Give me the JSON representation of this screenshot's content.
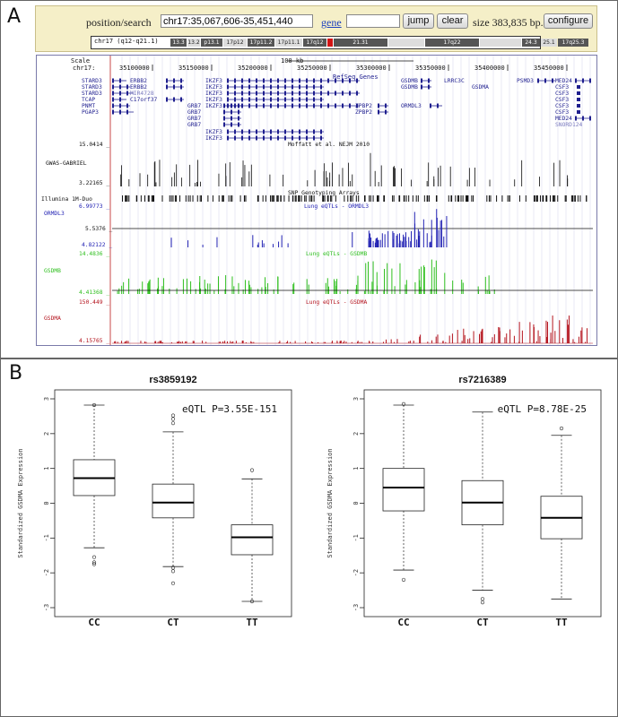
{
  "panel_a": {
    "letter": "A",
    "toolbar": {
      "position_label": "position/search",
      "position_value": "chr17:35,067,606-35,451,440",
      "gene_label": "gene",
      "gene_value": "",
      "jump_label": "jump",
      "clear_label": "clear",
      "size_text": "size 383,835 bp.",
      "configure_label": "configure"
    },
    "ideogram": {
      "label": "chr17 (q12-q21.1)",
      "bands": [
        {
          "name": "13.3",
          "w": 18,
          "dark": true
        },
        {
          "name": "13.2",
          "w": 14,
          "dark": false
        },
        {
          "name": "p13.1",
          "w": 24,
          "dark": true
        },
        {
          "name": "17p12",
          "w": 26,
          "dark": false
        },
        {
          "name": "17p11.2",
          "w": 30,
          "dark": true
        },
        {
          "name": "17p11.1",
          "w": 30,
          "dark": false
        },
        {
          "name": "17q12",
          "w": 26,
          "dark": true
        },
        {
          "name": "",
          "w": 6,
          "dark": false,
          "red": true
        },
        {
          "name": "21.31",
          "w": 60,
          "dark": true
        },
        {
          "name": "",
          "w": 40,
          "dark": false
        },
        {
          "name": "17q22",
          "w": 60,
          "dark": true
        },
        {
          "name": "",
          "w": 46,
          "dark": false
        },
        {
          "name": "24.3",
          "w": 20,
          "dark": true
        },
        {
          "name": "25.1",
          "w": 18,
          "dark": false
        },
        {
          "name": "17q25.3",
          "w": 34,
          "dark": true
        }
      ]
    },
    "tracks": {
      "scale_label": "Scale",
      "scale_text": "100 kb",
      "chrom_label": "chr17:",
      "positions": [
        "35100000",
        "35150000",
        "35200000",
        "35250000",
        "35300000",
        "35350000",
        "35400000",
        "35450000"
      ],
      "refseq_title": "RefSeq Genes",
      "genes_left": [
        "STARD3",
        "STARD3",
        "STARD3",
        "TCAP",
        "PNMT",
        "PGAP3"
      ],
      "genes": [
        {
          "name": "ERBB2",
          "col": 1,
          "row": 0
        },
        {
          "name": "ERBB2",
          "col": 1,
          "row": 1
        },
        {
          "name": "MIR4728",
          "col": 1,
          "row": 2
        },
        {
          "name": "C17orf37",
          "col": 1,
          "row": 3
        },
        {
          "name": "GRB7",
          "col": 2,
          "row": 4
        },
        {
          "name": "GRB7",
          "col": 2,
          "row": 5
        },
        {
          "name": "GRB7",
          "col": 2,
          "row": 6
        },
        {
          "name": "GRB7",
          "col": 2,
          "row": 7
        }
      ],
      "ikzf3": [
        "IKZF3",
        "IKZF3",
        "IKZF3",
        "IKZF3",
        "IKZF3"
      ],
      "ikzf3_lower": [
        "IKZF3",
        "IKZF3"
      ],
      "zfpb": [
        "ZPBP2",
        "ZPBP2"
      ],
      "right_genes": [
        "GSDMB",
        "GSDMB",
        "ORMDL3"
      ],
      "lrrc3c": "LRRC3C",
      "gsdma": "GSDMA",
      "psmd3": "PSMD3",
      "med24": [
        "MED24",
        "CSF3",
        "CSF3",
        "CSF3",
        "CSF3",
        "CSF3",
        "MED24",
        "SNORD124"
      ],
      "gwas_top": "15.0414 _",
      "gwas_title": "Moffatt et al. NEJM 2010",
      "gwas_label": "GWAS-GABRIEL",
      "gwas_bottom": "3.22165 _",
      "snp_title": "SNP Genotyping Arrays",
      "snp_label": "Illumina 1M-Duo",
      "ormdl3_top": "6.99773 _",
      "ormdl3_title": "Lung eQTLs - ORMDL3",
      "ormdl3_label": "ORMDL3",
      "ormdl3_mid": "5.5376 _",
      "ormdl3_bottom": "4.82122 _",
      "gsdmb_top": "14.4836 _",
      "gsdmb_title": "Lung eQTLs - GSDMB",
      "gsdmb_label": "GSDMB",
      "gsdmb_bottom": "4.41368 _",
      "gsdma_top": "150.449 _",
      "gsdma_title": "Lung eQTLs - GSDMA",
      "gsdma_label": "GSDMA",
      "gsdma_bottom": "4.15765 _"
    },
    "colors": {
      "ormdl3": "#2323b4",
      "gsdmb": "#2fbf1f",
      "gsdma": "#b4141e",
      "gene": "#1f1f8f"
    }
  },
  "panel_b": {
    "letter": "B",
    "chart_data": [
      {
        "type": "box",
        "title": "rs3859192",
        "annotation": "eQTL P=3.55E-151",
        "ylabel": "Standardized GSDMA Expression",
        "categories": [
          "CC",
          "CT",
          "TT"
        ],
        "yticks": [
          "-3",
          "-2",
          "-1",
          "0",
          "1",
          "2",
          "3"
        ],
        "ylim": [
          -3,
          3
        ],
        "boxes": [
          {
            "min": -1.28,
            "q1": 0.22,
            "median": 0.72,
            "q3": 1.25,
            "max": 2.82,
            "outliers": [
              -1.55,
              -1.7,
              -1.75,
              2.82
            ]
          },
          {
            "min": -1.82,
            "q1": -0.42,
            "median": 0.02,
            "q3": 0.55,
            "max": 2.05,
            "outliers": [
              -1.85,
              -1.95,
              -2.3,
              2.3,
              2.42,
              2.52
            ]
          },
          {
            "min": -2.82,
            "q1": -1.48,
            "median": -0.98,
            "q3": -0.62,
            "max": 0.7,
            "outliers": [
              0.95,
              -2.82
            ]
          }
        ]
      },
      {
        "type": "box",
        "title": "rs7216389",
        "annotation": "eQTL P=8.78E-25",
        "ylabel": "Standardized GSDMA Expression",
        "categories": [
          "CC",
          "CT",
          "TT"
        ],
        "yticks": [
          "-3",
          "-2",
          "-1",
          "0",
          "1",
          "2",
          "3"
        ],
        "ylim": [
          -3,
          3
        ],
        "boxes": [
          {
            "min": -1.92,
            "q1": -0.22,
            "median": 0.45,
            "q3": 1.0,
            "max": 2.82,
            "outliers": [
              -2.2,
              2.85
            ]
          },
          {
            "min": -2.5,
            "q1": -0.62,
            "median": 0.02,
            "q3": 0.65,
            "max": 2.62,
            "outliers": [
              -2.75,
              -2.85
            ]
          },
          {
            "min": -2.75,
            "q1": -1.02,
            "median": -0.42,
            "q3": 0.2,
            "max": 1.95,
            "outliers": [
              2.15
            ]
          }
        ]
      }
    ]
  }
}
